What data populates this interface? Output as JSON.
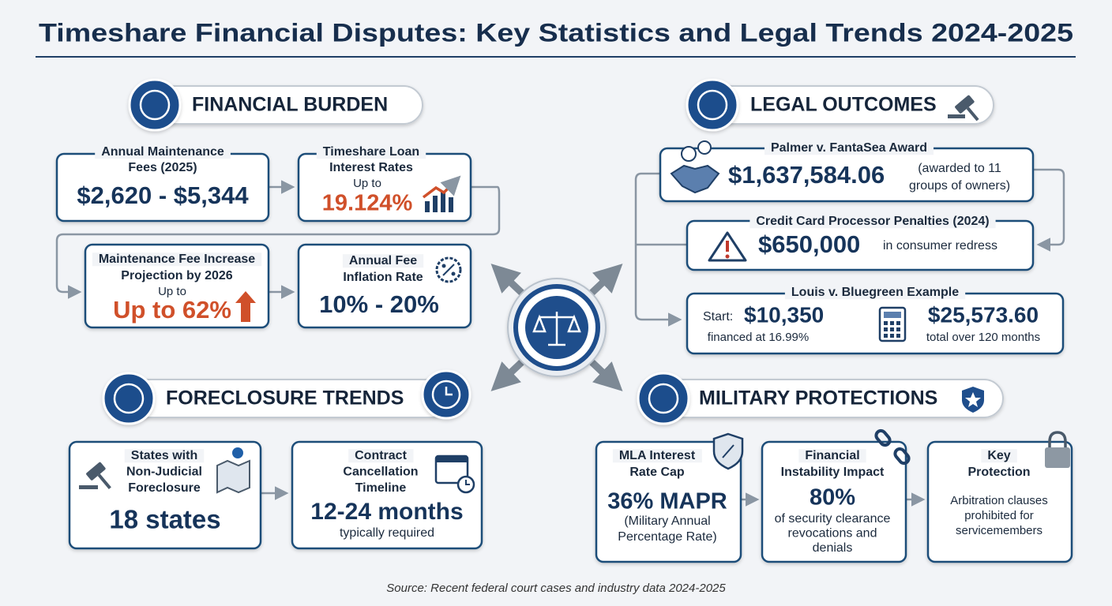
{
  "title": "Timeshare Financial Disputes: Key Statistics and Legal Trends 2024-2025",
  "financial_burden": {
    "heading": "FINANCIAL BURDEN",
    "cards": [
      {
        "label": [
          "Annual Maintenance",
          "Fees (2025)"
        ],
        "value": "$2,620 - $5,344"
      },
      {
        "label": [
          "Timeshare Loan",
          "Interest Rates"
        ],
        "prefix": "Up to",
        "value": "19.124%"
      },
      {
        "label": [
          "Maintenance Fee Increase",
          "Projection by 2026"
        ],
        "prefix": "Up to",
        "value": "Up to 62%"
      },
      {
        "label": [
          "Annual Fee",
          "Inflation Rate"
        ],
        "value": "10% - 20%"
      }
    ]
  },
  "legal_outcomes": {
    "heading": "LEGAL OUTCOMES",
    "cards": [
      {
        "label": "Palmer v. FantaSea Award",
        "value": "$1,637,584.06",
        "note": [
          "(awarded to 11",
          "groups of owners)"
        ]
      },
      {
        "label": "Credit Card Processor Penalties (2024)",
        "value": "$650,000",
        "note": "in consumer redress"
      },
      {
        "label": "Louis v. Bluegreen Example",
        "start_label": "Start:",
        "start_value": "$10,350",
        "start_note": "financed at 16.99%",
        "end_value": "$25,573.60",
        "end_note": "total over 120 months"
      }
    ]
  },
  "foreclosure_trends": {
    "heading": "FORECLOSURE TRENDS",
    "cards": [
      {
        "label": [
          "States with",
          "Non-Judicial",
          "Foreclosure"
        ],
        "value": "18 states"
      },
      {
        "label": [
          "Contract",
          "Cancellation",
          "Timeline"
        ],
        "value": "12-24 months",
        "note": "typically required"
      }
    ]
  },
  "military_protections": {
    "heading": "MILITARY PROTECTIONS",
    "cards": [
      {
        "label": [
          "MLA Interest",
          "Rate Cap"
        ],
        "value": "36% MAPR",
        "note": [
          "(Military Annual",
          "Percentage Rate)"
        ]
      },
      {
        "label": [
          "Financial",
          "Instability Impact"
        ],
        "value": "80%",
        "note": [
          "of security clearance",
          "revocations and",
          "denials"
        ]
      },
      {
        "label": [
          "Key",
          "Protection"
        ],
        "note": [
          "Arbitration clauses",
          "prohibited for",
          "servicemembers"
        ]
      }
    ]
  },
  "source": "Source: Recent federal court cases and industry data 2024-2025"
}
